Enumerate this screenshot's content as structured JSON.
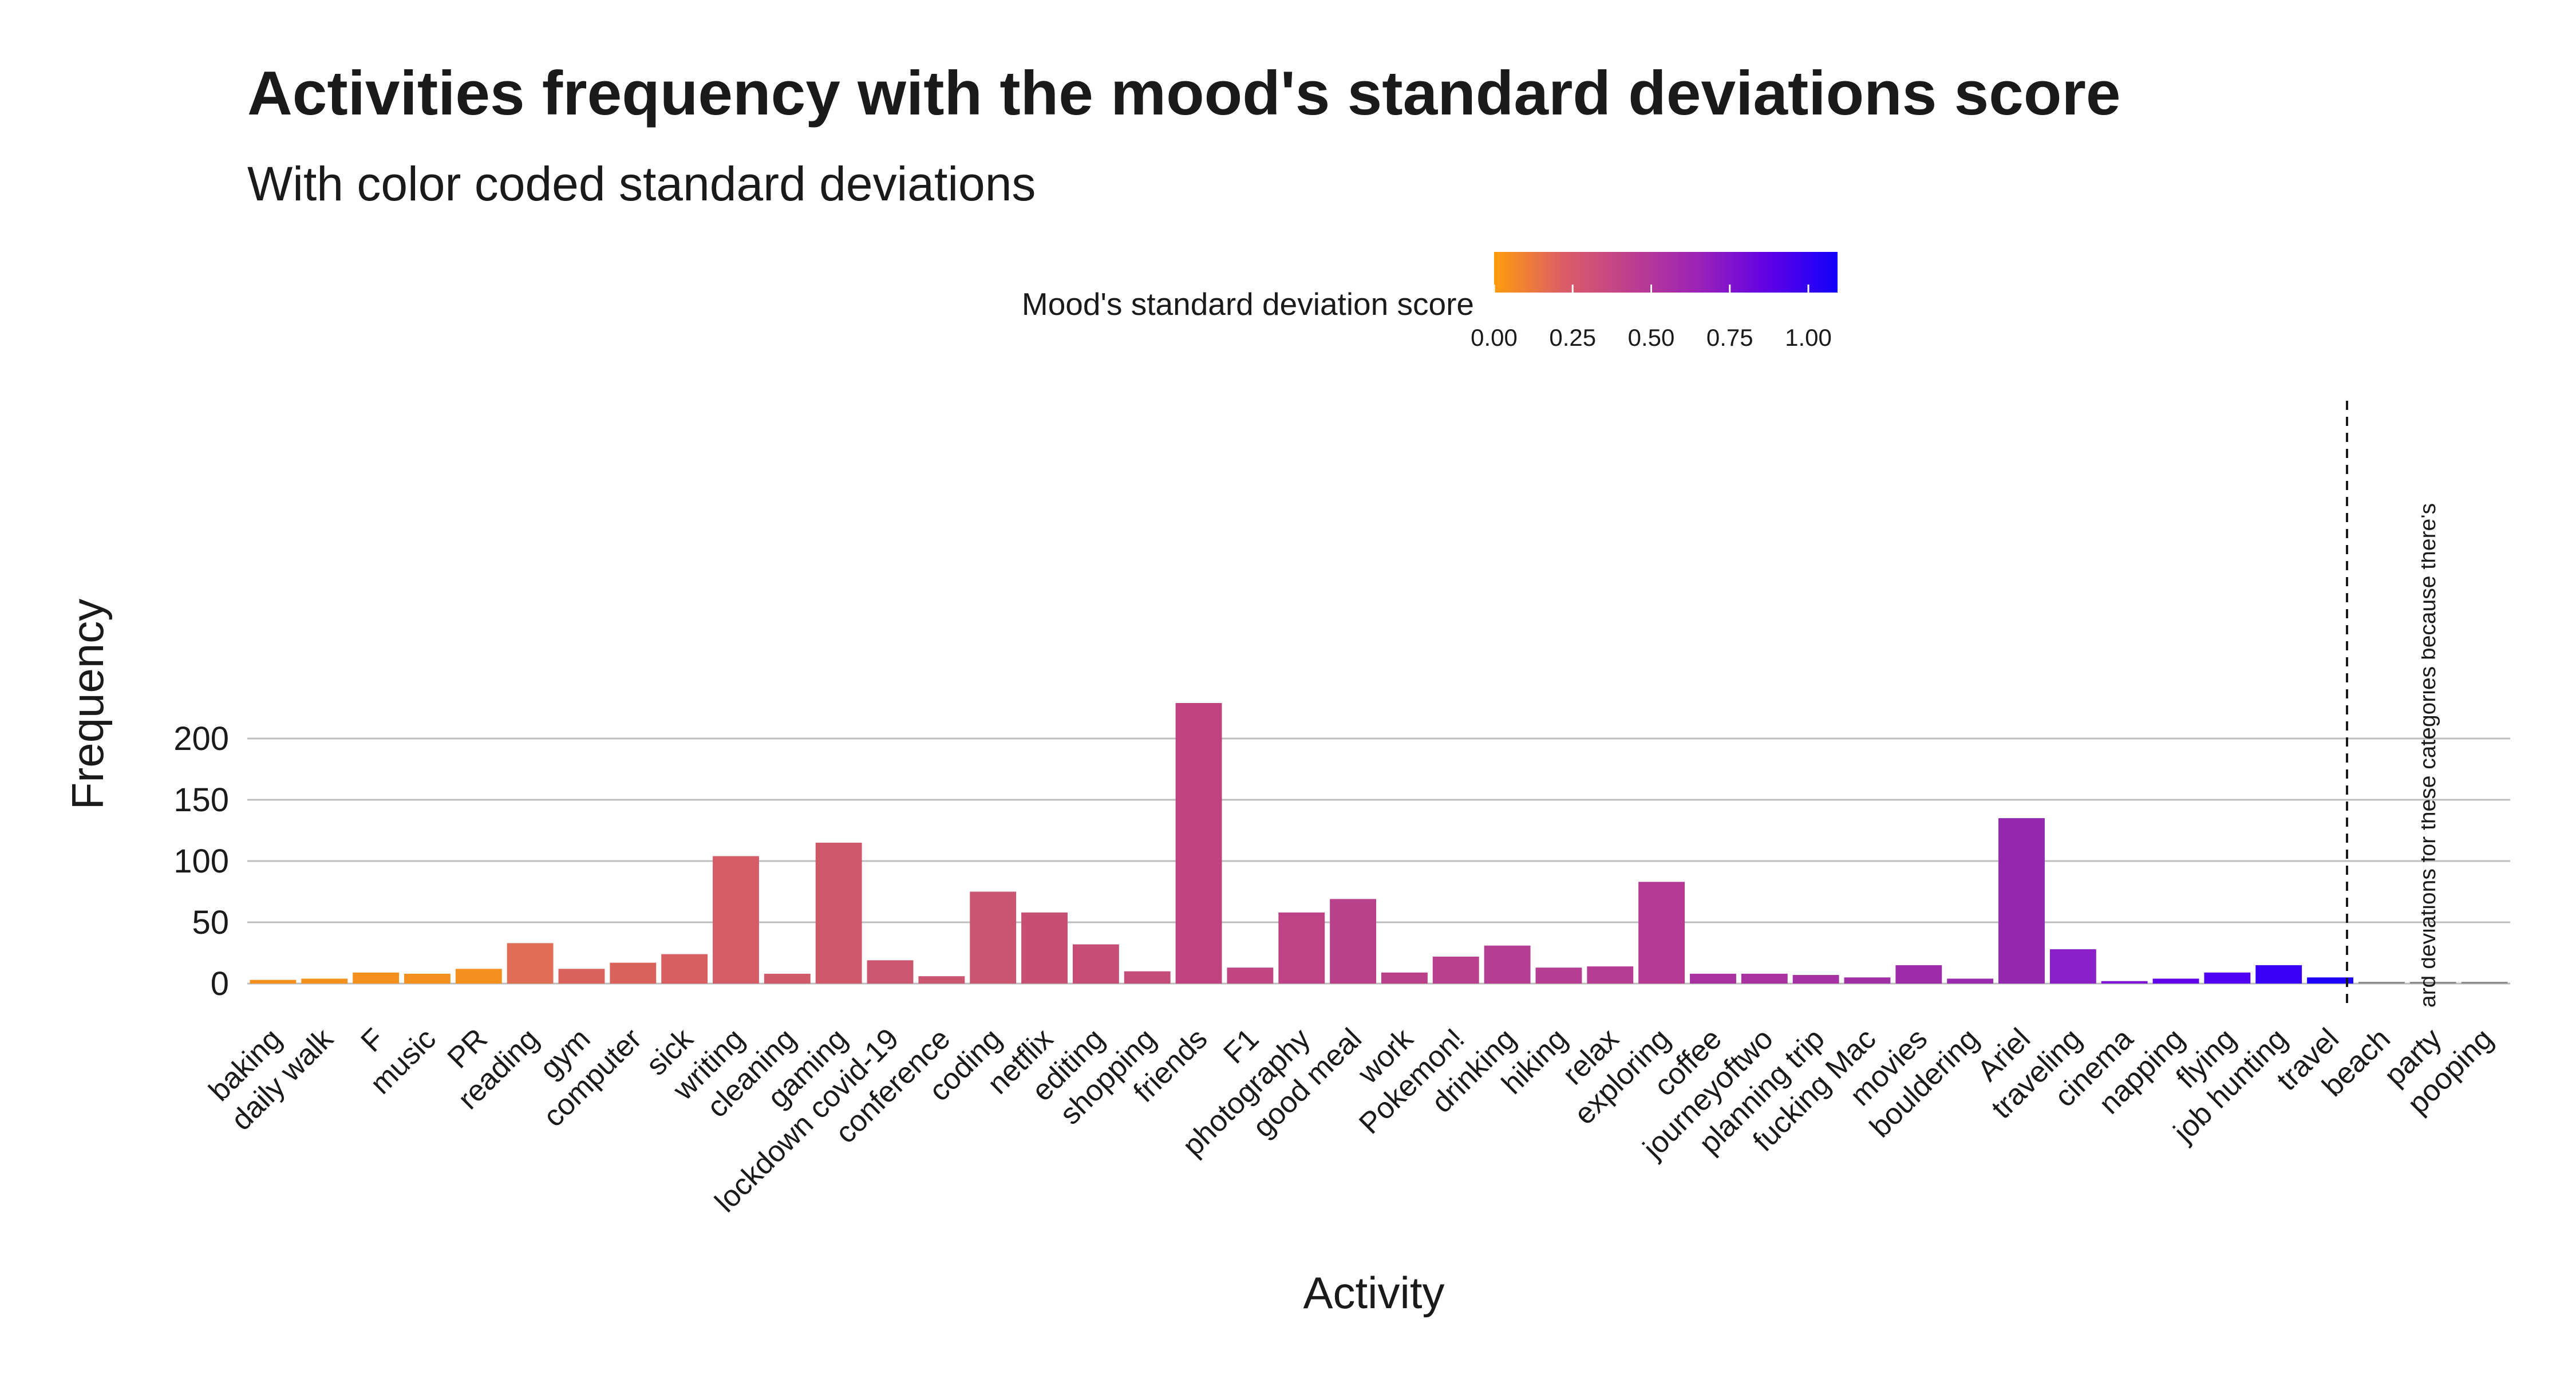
{
  "chart_data": {
    "type": "bar",
    "title": "Activities frequency with the mood's standard deviations score",
    "subtitle": "With color coded standard deviations",
    "xlabel": "Activity",
    "ylabel": "Frequency",
    "ylim": [
      0,
      240
    ],
    "yticks": [
      0,
      50,
      100,
      150,
      200
    ],
    "grid": true,
    "legend": {
      "title": "Mood's standard deviation score",
      "position": "top",
      "ticks": [
        "0.00",
        "0.25",
        "0.50",
        "0.75",
        "1.00"
      ],
      "gradient": [
        "#ff9c0c",
        "#dc5d66",
        "#bd3e8f",
        "#9a22b8",
        "#6000e6",
        "#1200fa"
      ]
    },
    "categories": [
      "baking",
      "daily walk",
      "F",
      "music",
      "PR",
      "reading",
      "gym",
      "computer",
      "sick",
      "writing",
      "cleaning",
      "gaming",
      "lockdown covid-19",
      "conference",
      "coding",
      "netflix",
      "editing",
      "shopping",
      "friends",
      "F1",
      "photography",
      "good meal",
      "work",
      "Pokemon!",
      "drinking",
      "hiking",
      "relax",
      "exploring",
      "coffee",
      "journeyoftwo",
      "planning trip",
      "fucking Mac",
      "movies",
      "bouldering",
      "Ariel",
      "traveling",
      "cinema",
      "napping",
      "flying",
      "job hunting",
      "travel",
      "beach",
      "party",
      "pooping"
    ],
    "values": [
      3,
      4,
      9,
      8,
      12,
      33,
      12,
      17,
      24,
      104,
      8,
      115,
      19,
      6,
      75,
      58,
      32,
      10,
      229,
      13,
      58,
      69,
      9,
      22,
      31,
      13,
      14,
      83,
      8,
      8,
      7,
      5,
      15,
      4,
      135,
      28,
      2,
      4,
      9,
      15,
      5,
      1,
      1,
      1
    ],
    "colors": [
      "#f5901f",
      "#f5901f",
      "#f5901f",
      "#f5901f",
      "#f5901f",
      "#e06e54",
      "#d9625c",
      "#d9625c",
      "#d75e61",
      "#d45c66",
      "#d05a6a",
      "#cf596a",
      "#cb566f",
      "#cb566f",
      "#c95570",
      "#c74f74",
      "#c64e76",
      "#c44c78",
      "#c0427f",
      "#c14580",
      "#bd4386",
      "#bb408a",
      "#ba408a",
      "#b8408c",
      "#b53d92",
      "#b53d92",
      "#b53d92",
      "#b63a93",
      "#a832a0",
      "#a832a0",
      "#a531a3",
      "#a12fa6",
      "#9e2ca9",
      "#9a2aae",
      "#9429b0",
      "#8a20c8",
      "#7d14d4",
      "#5f02ea",
      "#5000f2",
      "#3900f7",
      "#1c00fc",
      "#8c8c8c",
      "#8c8c8c",
      "#8c8c8c"
    ],
    "annotation": "ard deviations for these categories because there's"
  }
}
